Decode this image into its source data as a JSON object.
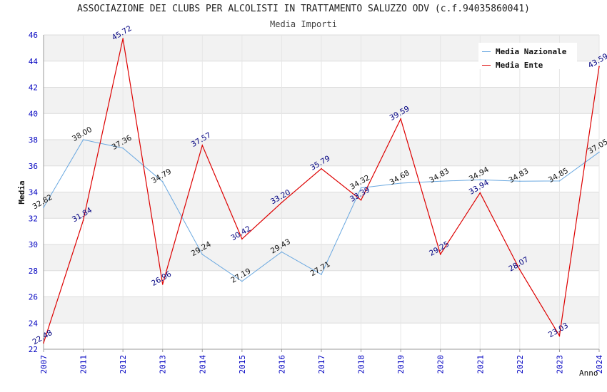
{
  "title": "ASSOCIAZIONE DEI CLUBS PER ALCOLISTI IN TRATTAMENTO SALUZZO ODV (c.f.94035860041)",
  "subtitle": "Media Importi",
  "colors": {
    "nazionale": "#6aa8e0",
    "ente": "#dd0000",
    "ente_label": "#000080",
    "axis_label": "#0000c0",
    "band": "#f2f2f2"
  },
  "chart_data": {
    "type": "line",
    "title": "ASSOCIAZIONE DEI CLUBS PER ALCOLISTI IN TRATTAMENTO SALUZZO ODV (c.f.94035860041)",
    "subtitle": "Media Importi",
    "xlabel": "Anno",
    "ylabel": "Media",
    "ylim": [
      22,
      46
    ],
    "yticks": [
      22,
      24,
      26,
      28,
      30,
      32,
      34,
      36,
      38,
      40,
      42,
      44,
      46
    ],
    "categories": [
      "2007",
      "2011",
      "2012",
      "2013",
      "2014",
      "2015",
      "2016",
      "2017",
      "2018",
      "2019",
      "2020",
      "2021",
      "2022",
      "2023",
      "2024"
    ],
    "legend_position": "top-right",
    "grid": true,
    "series": [
      {
        "name": "Media Nazionale",
        "values": [
          32.82,
          38.0,
          37.36,
          34.79,
          29.24,
          27.19,
          29.43,
          27.71,
          34.32,
          34.68,
          34.83,
          34.94,
          34.83,
          34.85,
          37.05
        ],
        "labels": [
          "32.82",
          "38.00",
          "37.36",
          "34.79",
          "29.24",
          "27.19",
          "29.43",
          "27.71",
          "34.32",
          "34.68",
          "34.83",
          "34.94",
          "34.83",
          "34.85",
          "37.05"
        ]
      },
      {
        "name": "Media Ente",
        "values": [
          22.48,
          31.84,
          45.72,
          26.96,
          37.57,
          30.42,
          33.2,
          35.79,
          33.39,
          39.59,
          29.25,
          33.94,
          28.07,
          23.03,
          43.59
        ],
        "labels": [
          "22.48",
          "31.84",
          "45.72",
          "26.96",
          "37.57",
          "30.42",
          "33.20",
          "35.79",
          "33.39",
          "39.59",
          "29.25",
          "33.94",
          "28.07",
          "23.03",
          "43.59"
        ]
      }
    ]
  }
}
